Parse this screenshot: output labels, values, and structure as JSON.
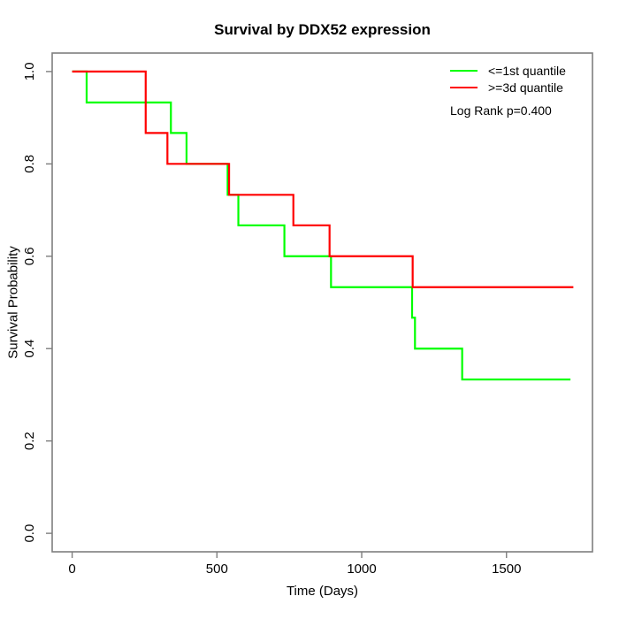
{
  "title": "Survival by DDX52 expression",
  "legend": {
    "items": [
      {
        "label": "<=1st quantile",
        "color": "#00FF00"
      },
      {
        "label": ">=3d quantile",
        "color": "#FF0000"
      }
    ],
    "note": "Log Rank p=0.400"
  },
  "chart_data": {
    "type": "line",
    "subtype": "kaplan-meier step curves",
    "title": "Survival by DDX52 expression",
    "xlabel": "Time (Days)",
    "ylabel": "Survival Probability",
    "xlim": [
      -69,
      1797
    ],
    "ylim": [
      -0.04,
      1.04
    ],
    "grid": false,
    "legend_position": "top-right",
    "annotation": "Log Rank p=0.400",
    "x_ticks": {
      "values": [
        0,
        500,
        1000,
        1500
      ],
      "labels": [
        "0",
        "500",
        "1000",
        "1500"
      ]
    },
    "y_ticks": {
      "values": [
        0.0,
        0.2,
        0.4,
        0.6,
        0.8,
        1.0
      ],
      "labels": [
        "0.0",
        "0.2",
        "0.4",
        "0.6",
        "0.8",
        "1.0"
      ]
    },
    "series": [
      {
        "name": "<=1st quantile",
        "color": "#00FF00",
        "step_times": [
          0,
          50,
          341,
          395,
          537,
          574,
          733,
          894,
          1174,
          1184,
          1347
        ],
        "survival": [
          1.0,
          0.933,
          0.867,
          0.8,
          0.733,
          0.667,
          0.6,
          0.533,
          0.467,
          0.4,
          0.333
        ],
        "end_time": 1721
      },
      {
        "name": ">=3d quantile",
        "color": "#FF0000",
        "step_times": [
          0,
          254,
          329,
          542,
          764,
          889,
          1176
        ],
        "survival": [
          1.0,
          0.867,
          0.8,
          0.733,
          0.667,
          0.6,
          0.533
        ],
        "end_time": 1731
      }
    ]
  }
}
